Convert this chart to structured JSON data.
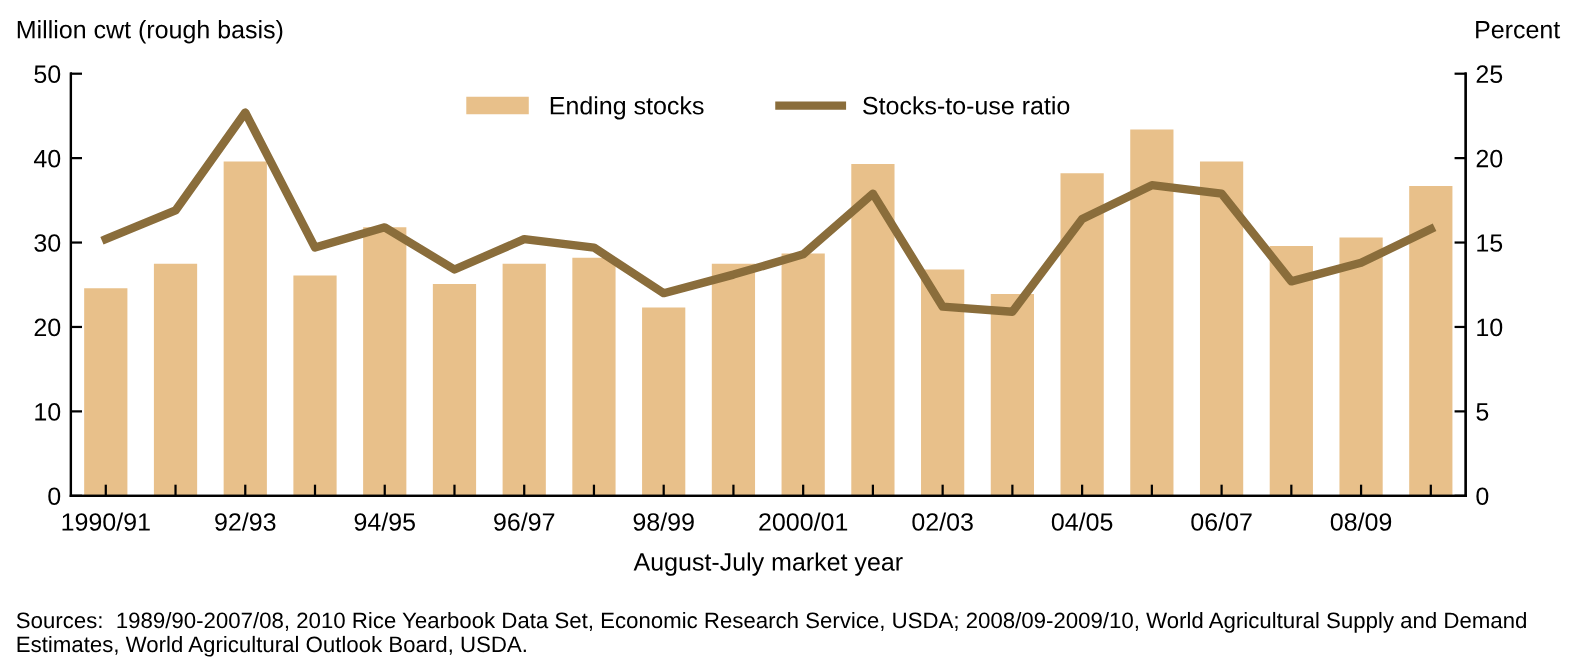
{
  "chart_data": {
    "type": "bar",
    "categories": [
      "1990/91",
      null,
      "92/93",
      null,
      "94/95",
      null,
      "96/97",
      null,
      "98/99",
      null,
      "2000/01",
      null,
      "02/03",
      null,
      "04/05",
      null,
      "06/07",
      null,
      "08/09",
      null
    ],
    "series": [
      {
        "name": "Ending stocks",
        "color": "#e8c08a",
        "values": [
          24.6,
          27.5,
          39.6,
          26.1,
          31.8,
          25.1,
          27.5,
          28.2,
          22.3,
          27.5,
          28.7,
          39.3,
          26.8,
          23.9,
          38.2,
          43.4,
          39.6,
          29.6,
          30.6,
          36.7
        ]
      },
      {
        "name": "Stocks-to-use ratio",
        "type": "line",
        "axis": "y2",
        "color": "#8a6d3b",
        "values": [
          15.2,
          16.9,
          22.7,
          14.7,
          15.9,
          13.4,
          15.2,
          14.7,
          12.0,
          13.1,
          14.3,
          17.9,
          11.2,
          10.9,
          16.4,
          18.4,
          17.9,
          12.7,
          13.8,
          15.8
        ]
      }
    ],
    "ylabel": "Million cwt (rough basis)",
    "y2label": "Percent",
    "xlabel": "August-July market year",
    "ylim": [
      0,
      50
    ],
    "yticks": [
      0,
      10,
      20,
      30,
      40,
      50
    ],
    "y2lim": [
      0,
      25
    ],
    "y2ticks": [
      0,
      5,
      10,
      15,
      20,
      25
    ],
    "legend": "top",
    "grid": false,
    "annotations": [
      "Sources:  1989/90-2007/08, 2010 Rice Yearbook Data Set, Economic Research Service, USDA; 2008/09-2009/10, World Agricultural Supply and Demand Estimates, World Agricultural Outlook Board, USDA."
    ]
  }
}
